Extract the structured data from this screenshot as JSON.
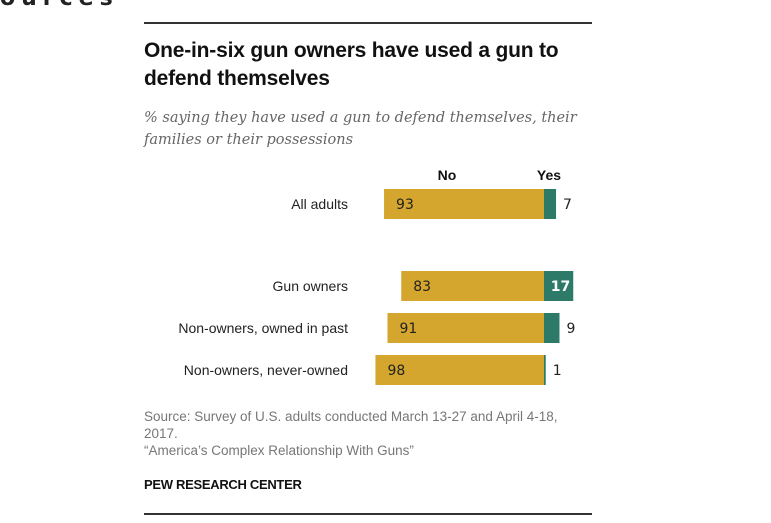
{
  "page": {
    "cutoff_heading": "ources"
  },
  "chart_data": {
    "type": "bar",
    "orientation": "horizontal",
    "stacked": true,
    "title": "One-in-six gun owners have used a gun to defend themselves",
    "subtitle": "% saying they have used a gun to defend themselves, their families or their possessions",
    "series_labels": {
      "no": "No",
      "yes": "Yes"
    },
    "colors": {
      "no": "#d4a62e",
      "yes": "#2e7a68"
    },
    "categories": [
      "All adults",
      "Gun owners",
      "Non-owners, owned in past",
      "Non-owners, never-owned"
    ],
    "series": [
      {
        "name": "No",
        "values": [
          93,
          83,
          91,
          98
        ]
      },
      {
        "name": "Yes",
        "values": [
          7,
          17,
          9,
          1
        ]
      }
    ],
    "xlabel": "",
    "ylabel": "",
    "xlim": [
      0,
      100
    ],
    "grid": false,
    "legend": "top",
    "source": "Source: Survey of U.S. adults conducted March 13-27 and April 4-18, 2017.",
    "report": "“America’s Complex Relationship With Guns”",
    "credit": "PEW RESEARCH CENTER"
  }
}
